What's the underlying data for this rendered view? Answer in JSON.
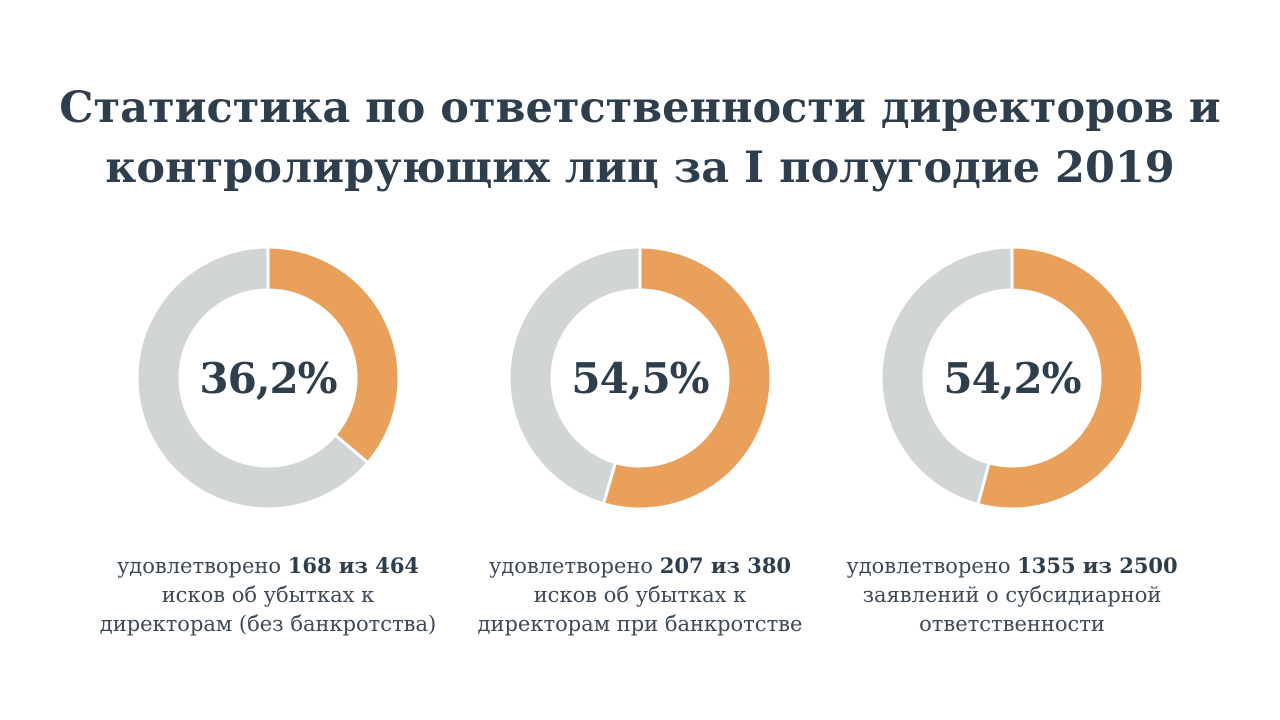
{
  "title": {
    "line1": "Статистика по ответственности директоров и",
    "line2": "контролирующих лиц за I полугодие 2019"
  },
  "colors": {
    "highlight": "#e8a05a",
    "remainder": "#d1d5d6",
    "text": "#2e3e4c"
  },
  "chart_data": [
    {
      "type": "pie",
      "label": "36,2%",
      "values": [
        36.2,
        63.8
      ],
      "caption": {
        "prefix": "удовлетворено",
        "count": "168 из 464",
        "line2": "исков об убытках к",
        "line3": "директорам (без банкротства)"
      }
    },
    {
      "type": "pie",
      "label": "54,5%",
      "values": [
        54.5,
        45.5
      ],
      "caption": {
        "prefix": "удовлетворено",
        "count": "207 из 380",
        "line2": "исков об убытках к",
        "line3": "директорам при банкротстве"
      }
    },
    {
      "type": "pie",
      "label": "54,2%",
      "values": [
        54.2,
        45.8
      ],
      "caption": {
        "prefix": "удовлетворено",
        "count": "1355 из 2500",
        "line2": "заявлений о субсидиарной",
        "line3": "ответственности"
      }
    }
  ]
}
